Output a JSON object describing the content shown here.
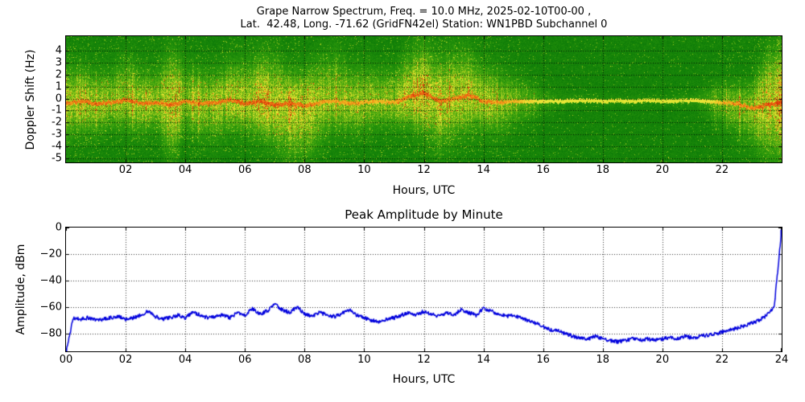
{
  "figure": {
    "title_line1": "Grape Narrow Spectrum, Freq. = 10.0 MHz, 2025-02-10T00-00 ,",
    "title_line2": "Lat.  42.48, Long. -71.62 (GridFN42el) Station: WN1PBD Subchannel 0",
    "background": "#ffffff",
    "grid_color": "#000000"
  },
  "chart_data": [
    {
      "type": "heatmap",
      "name": "doppler-spectrogram",
      "xlabel": "Hours, UTC",
      "ylabel": "Doppler Shift (Hz)",
      "xlim": [
        0,
        24
      ],
      "ylim": [
        -5.34,
        5.21
      ],
      "grid": true,
      "x_ticks": [
        {
          "v": 2,
          "label": "02"
        },
        {
          "v": 4,
          "label": "04"
        },
        {
          "v": 6,
          "label": "06"
        },
        {
          "v": 8,
          "label": "08"
        },
        {
          "v": 10,
          "label": "10"
        },
        {
          "v": 12,
          "label": "12"
        },
        {
          "v": 14,
          "label": "14"
        },
        {
          "v": 16,
          "label": "16"
        },
        {
          "v": 18,
          "label": "18"
        },
        {
          "v": 20,
          "label": "20"
        },
        {
          "v": 22,
          "label": "22"
        }
      ],
      "y_ticks": [
        {
          "v": 4,
          "label": "4"
        },
        {
          "v": 3,
          "label": "3"
        },
        {
          "v": 2,
          "label": "2"
        },
        {
          "v": 1,
          "label": "1"
        },
        {
          "v": 0,
          "label": "0"
        },
        {
          "v": -1,
          "label": "-1"
        },
        {
          "v": -2,
          "label": "-2"
        },
        {
          "v": -3,
          "label": "-3"
        },
        {
          "v": -4,
          "label": "-4"
        },
        {
          "v": -5,
          "label": "-5"
        }
      ],
      "colormap_stops": [
        {
          "v": 0.0,
          "c": "#045f04"
        },
        {
          "v": 0.3,
          "c": "#0f7d08"
        },
        {
          "v": 0.45,
          "c": "#2f9b0c"
        },
        {
          "v": 0.58,
          "c": "#6ab514"
        },
        {
          "v": 0.68,
          "c": "#a7cc1c"
        },
        {
          "v": 0.76,
          "c": "#d8e22c"
        },
        {
          "v": 0.84,
          "c": "#efe93c"
        },
        {
          "v": 0.9,
          "c": "#f2b61e"
        },
        {
          "v": 0.95,
          "c": "#ec6a12"
        },
        {
          "v": 1.0,
          "c": "#d62a08"
        }
      ],
      "envelope_step_hours": 0.5,
      "intensity": [
        0.75,
        0.7,
        0.65,
        0.6,
        0.65,
        0.7,
        0.6,
        0.8,
        0.6,
        0.6,
        0.65,
        0.7,
        0.75,
        0.8,
        0.85,
        0.9,
        0.8,
        0.6,
        0.6,
        0.65,
        0.6,
        0.55,
        0.6,
        0.75,
        0.9,
        0.8,
        0.75,
        0.8,
        0.7,
        0.6,
        0.5,
        0.35,
        0.2,
        0.15,
        0.12,
        0.1,
        0.1,
        0.1,
        0.1,
        0.1,
        0.1,
        0.12,
        0.15,
        0.25,
        0.4,
        0.5,
        0.55,
        0.85,
        0.9
      ],
      "spread_up_hz": [
        3.5,
        3.2,
        3.0,
        3.0,
        4.0,
        3.2,
        3.0,
        5.0,
        3.5,
        3.2,
        3.0,
        3.5,
        4.0,
        4.2,
        4.5,
        3.0,
        3.5,
        4.0,
        4.5,
        3.5,
        3.5,
        3.0,
        3.0,
        4.0,
        4.5,
        4.0,
        4.5,
        4.0,
        3.5,
        3.0,
        2.5,
        2.0,
        1.5,
        1.0,
        0.8,
        0.7,
        0.7,
        0.6,
        0.6,
        0.6,
        0.6,
        0.7,
        0.8,
        1.5,
        2.0,
        2.0,
        2.5,
        5.0,
        5.0
      ],
      "spread_down_hz": [
        3.5,
        3.0,
        3.0,
        2.5,
        3.0,
        3.0,
        2.5,
        5.0,
        3.0,
        3.2,
        3.5,
        3.0,
        3.0,
        3.5,
        4.0,
        5.0,
        5.0,
        4.0,
        3.0,
        3.0,
        3.0,
        2.5,
        2.5,
        3.0,
        4.0,
        4.5,
        4.0,
        3.5,
        3.0,
        3.0,
        2.5,
        2.0,
        1.5,
        1.0,
        0.8,
        0.7,
        0.7,
        0.6,
        0.6,
        0.6,
        0.6,
        0.7,
        0.8,
        1.5,
        2.5,
        3.0,
        3.5,
        5.0,
        5.0
      ],
      "carrier_hz": [
        -0.4,
        -0.2,
        -0.4,
        -0.3,
        -0.1,
        -0.4,
        -0.3,
        -0.5,
        -0.2,
        -0.4,
        -0.3,
        -0.1,
        -0.4,
        -0.2,
        -0.5,
        -0.4,
        -0.6,
        -0.3,
        -0.2,
        -0.4,
        -0.3,
        -0.2,
        -0.3,
        0.2,
        0.5,
        -0.2,
        0.0,
        0.3,
        -0.2,
        -0.3,
        -0.2,
        -0.25,
        -0.2,
        -0.2,
        -0.15,
        -0.15,
        -0.2,
        -0.15,
        -0.2,
        -0.15,
        -0.2,
        -0.15,
        -0.15,
        -0.2,
        -0.3,
        -0.4,
        -0.8,
        -0.5,
        -0.3
      ],
      "carrier_strength": [
        0.9,
        0.85,
        0.9,
        0.85,
        0.9,
        0.9,
        0.85,
        0.9,
        0.85,
        0.85,
        0.9,
        0.9,
        0.95,
        0.95,
        0.95,
        0.9,
        0.9,
        0.8,
        0.75,
        0.8,
        0.75,
        0.7,
        0.75,
        0.9,
        0.95,
        0.9,
        0.85,
        0.9,
        0.85,
        0.8,
        0.75,
        0.6,
        0.45,
        0.4,
        0.38,
        0.35,
        0.35,
        0.35,
        0.35,
        0.35,
        0.35,
        0.38,
        0.4,
        0.5,
        0.7,
        0.8,
        0.85,
        0.95,
        0.95
      ]
    },
    {
      "type": "line",
      "name": "peak-amplitude",
      "title": "Peak Amplitude by Minute",
      "xlabel": "Hours, UTC",
      "ylabel": "Amplitude, dBm",
      "xlim": [
        0,
        24
      ],
      "ylim": [
        -93.3,
        0
      ],
      "grid": true,
      "line_color": "#0000dd",
      "x_ticks": [
        {
          "v": 0,
          "label": "00"
        },
        {
          "v": 2,
          "label": "02"
        },
        {
          "v": 4,
          "label": "04"
        },
        {
          "v": 6,
          "label": "06"
        },
        {
          "v": 8,
          "label": "08"
        },
        {
          "v": 10,
          "label": "10"
        },
        {
          "v": 12,
          "label": "12"
        },
        {
          "v": 14,
          "label": "14"
        },
        {
          "v": 16,
          "label": "16"
        },
        {
          "v": 18,
          "label": "18"
        },
        {
          "v": 20,
          "label": "20"
        },
        {
          "v": 22,
          "label": "22"
        },
        {
          "v": 24,
          "label": "24"
        }
      ],
      "y_ticks": [
        {
          "v": 0,
          "label": "0"
        },
        {
          "v": -20,
          "label": "−20"
        },
        {
          "v": -40,
          "label": "−40"
        },
        {
          "v": -60,
          "label": "−60"
        },
        {
          "v": -80,
          "label": "−80"
        }
      ],
      "x_step_hours": 0.25,
      "values_dbm": [
        -93,
        -68,
        -69,
        -68,
        -70,
        -69,
        -68,
        -67,
        -69,
        -68,
        -66,
        -63,
        -67,
        -69,
        -68,
        -66,
        -68,
        -64,
        -66,
        -68,
        -67,
        -66,
        -68,
        -64,
        -66,
        -61,
        -65,
        -63,
        -58,
        -62,
        -64,
        -60,
        -65,
        -67,
        -64,
        -66,
        -67,
        -65,
        -62,
        -66,
        -68,
        -70,
        -71,
        -69,
        -68,
        -66,
        -64,
        -66,
        -63,
        -65,
        -67,
        -64,
        -66,
        -62,
        -64,
        -66,
        -61,
        -63,
        -65,
        -67,
        -66,
        -68,
        -70,
        -72,
        -75,
        -77,
        -78,
        -80,
        -82,
        -83,
        -84,
        -82,
        -84,
        -85,
        -86,
        -85,
        -84,
        -85,
        -84,
        -85,
        -84,
        -83,
        -84,
        -82,
        -83,
        -82,
        -81,
        -80,
        -79,
        -77,
        -76,
        -74,
        -72,
        -70,
        -66,
        -60,
        -2
      ]
    }
  ]
}
